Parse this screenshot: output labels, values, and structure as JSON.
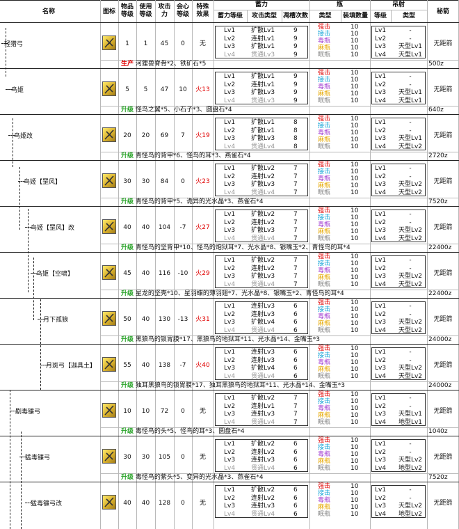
{
  "header": {
    "name": "名称",
    "icon": "图标",
    "rarity": "物品\n等级",
    "use_level": "使用\n等级",
    "attack": "攻击\n力",
    "crit": "会心\n等级",
    "special": "特殊\n效果",
    "charge": "蓄力",
    "charge_level": "蓄力等级",
    "attack_type": "攻击类型",
    "shots": "凋槽次数",
    "bottle": "瓶",
    "bottle_type": "类型",
    "bottle_amount": "装填数量",
    "shot": "吊射",
    "shot_level": "等级",
    "shot_type": "类型",
    "secret": "秘箭"
  },
  "charge_levels": [
    "Lv1",
    "Lv2",
    "Lv3",
    "Lv4"
  ],
  "bottle_types": [
    "强击",
    "接击",
    "毒瓶",
    "麻瓶",
    "眠瓶"
  ],
  "shot_levels": [
    "Lv1",
    "Lv2",
    "Lv3",
    "Lv4"
  ],
  "weapons": [
    {
      "name": "轻猎弓",
      "rarity": "1",
      "use": "1",
      "atk": "45",
      "crit": "0",
      "special": "无",
      "special_fire": false,
      "attacks": [
        "扩散Lv1",
        "连射Lv1",
        "扩散Lv1",
        "贯通Lv3"
      ],
      "shots": [
        "9",
        "9",
        "9",
        "9"
      ],
      "bottle_counts": [
        "10",
        "10",
        "10",
        "10",
        "10"
      ],
      "shot_types": [
        "-",
        "-",
        "天型Lv1",
        "天型Lv1"
      ],
      "secret": "无距箭",
      "upgrade_tag": "生产",
      "upgrade_prod": true,
      "upgrade_mats": "河狸兽脊骨*2、铁矿石*5",
      "price": "500z"
    },
    {
      "name": "鸟姬",
      "rarity": "5",
      "use": "5",
      "atk": "47",
      "crit": "10",
      "special": "火13",
      "special_fire": true,
      "attacks": [
        "扩散Lv1",
        "连射Lv1",
        "扩散Lv3",
        "贯通Lv3"
      ],
      "shots": [
        "9",
        "9",
        "9",
        "9"
      ],
      "bottle_counts": [
        "10",
        "10",
        "10",
        "10",
        "10"
      ],
      "shot_types": [
        "-",
        "-",
        "天型Lv1",
        "天型Lv1"
      ],
      "secret": "无距箭",
      "upgrade_tag": "升级",
      "upgrade_prod": false,
      "upgrade_mats": "怪鸟之翼*5、小石子*3、圆盘石*4",
      "price": "640z"
    },
    {
      "name": "鸟姬改",
      "rarity": "20",
      "use": "20",
      "atk": "69",
      "crit": "7",
      "special": "火19",
      "special_fire": true,
      "attacks": [
        "扩散Lv1",
        "扩散Lv1",
        "扩散Lv3",
        "贯通Lv4"
      ],
      "shots": [
        "8",
        "8",
        "8",
        "8"
      ],
      "bottle_counts": [
        "10",
        "10",
        "10",
        "10",
        "10"
      ],
      "shot_types": [
        "-",
        "-",
        "天型Lv1",
        "天型Lv2"
      ],
      "secret": "无距箭",
      "upgrade_tag": "升级",
      "upgrade_prod": false,
      "upgrade_mats": "青怪鸟的背甲*6、怪鸟的耳*3、燕雀石*4",
      "price": "2720z"
    },
    {
      "name": "鸟姬【罡风】",
      "rarity": "30",
      "use": "30",
      "atk": "84",
      "crit": "0",
      "special": "火23",
      "special_fire": true,
      "attacks": [
        "扩散Lv2",
        "连射Lv2",
        "扩散Lv3",
        "贯通Lv4"
      ],
      "shots": [
        "7",
        "7",
        "7",
        "7"
      ],
      "bottle_counts": [
        "10",
        "10",
        "10",
        "10",
        "10"
      ],
      "shot_types": [
        "-",
        "-",
        "天型Lv2",
        "天型Lv2"
      ],
      "secret": "无距箭",
      "upgrade_tag": "升级",
      "upgrade_prod": false,
      "upgrade_mats": "青怪鸟的背甲*5、诡异的光水晶*3、燕雀石*4",
      "price": "7520z"
    },
    {
      "name": "鸟姬【罡风】改",
      "rarity": "40",
      "use": "40",
      "atk": "104",
      "crit": "-7",
      "special": "火27",
      "special_fire": true,
      "attacks": [
        "扩散Lv2",
        "连射Lv2",
        "扩散Lv3",
        "贯通Lv4"
      ],
      "shots": [
        "7",
        "7",
        "7",
        "7"
      ],
      "bottle_counts": [
        "10",
        "10",
        "10",
        "10",
        "10"
      ],
      "shot_types": [
        "-",
        "-",
        "天型Lv2",
        "天型Lv2"
      ],
      "secret": "无距箭",
      "upgrade_tag": "升级",
      "upgrade_prod": false,
      "upgrade_mats": "青怪鸟的坚背甲*10、怪鸟的炮狱耳*7、光水晶*8、银嘴玉*2、青怪鸟的耳*4",
      "price": "22400z"
    },
    {
      "name": "鸟姬【空啸】",
      "rarity": "45",
      "use": "40",
      "atk": "116",
      "crit": "-10",
      "special": "火29",
      "special_fire": true,
      "attacks": [
        "扩散Lv2",
        "连射Lv2",
        "扩散Lv3",
        "贯通Lv4"
      ],
      "shots": [
        "7",
        "7",
        "7",
        "7"
      ],
      "bottle_counts": [
        "10",
        "10",
        "10",
        "10",
        "10"
      ],
      "shot_types": [
        "-",
        "-",
        "天型Lv2",
        "天型Lv2"
      ],
      "secret": "无距箭",
      "upgrade_tag": "升级",
      "upgrade_prod": false,
      "upgrade_mats": "星龙的坚壳*10、星羽蝶的薄羽翅*7、光水晶*8、银嘴玉*2、青怪鸟的耳*4",
      "price": "22400z"
    },
    {
      "name": "月下孤狼",
      "rarity": "50",
      "use": "40",
      "atk": "130",
      "crit": "-13",
      "special": "火31",
      "special_fire": true,
      "attacks": [
        "连射Lv3",
        "连射Lv3",
        "扩散Lv4",
        "贯通Lv4"
      ],
      "shots": [
        "6",
        "6",
        "6",
        "6"
      ],
      "bottle_counts": [
        "10",
        "10",
        "10",
        "10",
        "10"
      ],
      "shot_types": [
        "-",
        "-",
        "天型Lv2",
        "天型Lv2"
      ],
      "secret": "无距箭",
      "upgrade_tag": "升级",
      "upgrade_prod": false,
      "upgrade_mats": "黑狼鸟的锁胃膜*17、黑狼鸟的地狱耳*11、光水晶*14、金嘴玉*3",
      "price": "24000z"
    },
    {
      "name": "月斑弓【迦具土】",
      "rarity": "55",
      "use": "40",
      "atk": "138",
      "crit": "-7",
      "special": "火40",
      "special_fire": true,
      "attacks": [
        "连射Lv3",
        "连射Lv3",
        "扩散Lv4",
        "贯通Lv4"
      ],
      "shots": [
        "6",
        "6",
        "6",
        "6"
      ],
      "bottle_counts": [
        "10",
        "10",
        "10",
        "10",
        "10"
      ],
      "shot_types": [
        "-",
        "-",
        "天型Lv2",
        "天型Lv2"
      ],
      "secret": "无距箭",
      "upgrade_tag": "升级",
      "upgrade_prod": false,
      "upgrade_mats": "独耳黑狼鸟的锁胃膜*17、独耳黑狼鸟的地狱耳*11、光水晶*14、金嘴玉*3",
      "price": "24000z"
    },
    {
      "name": "剧毒镰弓",
      "rarity": "10",
      "use": "10",
      "atk": "72",
      "crit": "0",
      "special": "无",
      "special_fire": false,
      "attacks": [
        "扩散Lv2",
        "连射Lv1",
        "连射Lv3",
        "贯通Lv4"
      ],
      "shots": [
        "7",
        "7",
        "7",
        "7"
      ],
      "bottle_counts": [
        "10",
        "10",
        "10",
        "10",
        "10"
      ],
      "shot_types": [
        "-",
        "-",
        "天型Lv1",
        "地型Lv1"
      ],
      "secret": "无距箭",
      "upgrade_tag": "升级",
      "upgrade_prod": false,
      "upgrade_mats": "毒怪鸟的头*5、怪鸟的耳*3、圆盘石*4",
      "price": "1040z"
    },
    {
      "name": "猛毒镰弓",
      "rarity": "30",
      "use": "30",
      "atk": "105",
      "crit": "0",
      "special": "无",
      "special_fire": false,
      "attacks": [
        "扩散Lv2",
        "连射Lv2",
        "连射Lv3",
        "贯通Lv4"
      ],
      "shots": [
        "6",
        "6",
        "6",
        "6"
      ],
      "bottle_counts": [
        "10",
        "10",
        "10",
        "10",
        "10"
      ],
      "shot_types": [
        "-",
        "-",
        "天型Lv2",
        "地型Lv2"
      ],
      "secret": "无距箭",
      "upgrade_tag": "升级",
      "upgrade_prod": false,
      "upgrade_mats": "毒怪鸟的紫头*5、变异的光水晶*3、燕雀石*4",
      "price": "7520z"
    },
    {
      "name": "猛毒镰弓改",
      "rarity": "40",
      "use": "40",
      "atk": "128",
      "crit": "0",
      "special": "无",
      "special_fire": false,
      "attacks": [
        "扩散Lv2",
        "连射Lv2",
        "连射Lv3",
        "贯通Lv4"
      ],
      "shots": [
        "6",
        "6",
        "6",
        "6"
      ],
      "bottle_counts": [
        "10",
        "10",
        "10",
        "10",
        "10"
      ],
      "shot_types": [
        "-",
        "-",
        "天型Lv2",
        "地型Lv2"
      ],
      "secret": "无距箭"
    }
  ]
}
